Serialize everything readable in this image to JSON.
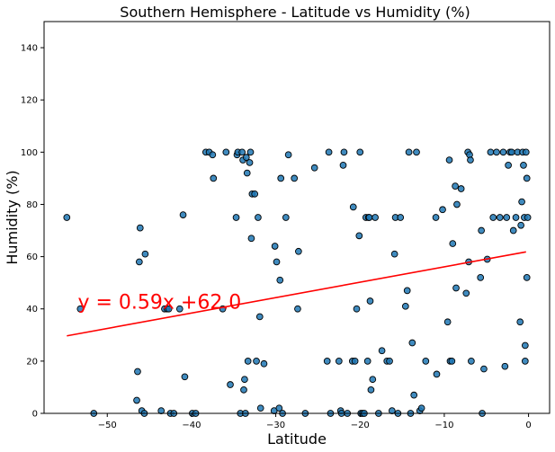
{
  "chart_data": {
    "type": "scatter",
    "title": "Southern Hemisphere - Latitude vs Humidity (%)",
    "xlabel": "Latitude",
    "ylabel": "Humidity (%)",
    "xlim": [
      -57.5,
      2.5
    ],
    "ylim": [
      0,
      150
    ],
    "xticks": [
      -50,
      -40,
      -30,
      -20,
      -10,
      0
    ],
    "yticks": [
      0,
      20,
      40,
      60,
      80,
      100,
      120,
      140
    ],
    "grid": false,
    "marker_color": "#1f77b4",
    "marker_edge": "#000000",
    "regression": {
      "slope": 0.59,
      "intercept": 62.0,
      "x_range": [
        -54.8,
        -0.3
      ],
      "color": "#ff0000",
      "label": "y = 0.59x +62.0",
      "label_x": -53.5,
      "label_y": 40
    },
    "points": [
      [
        -54.8,
        75
      ],
      [
        -53.2,
        40
      ],
      [
        -51.6,
        0
      ],
      [
        -46.5,
        5
      ],
      [
        -46.4,
        16
      ],
      [
        -46.2,
        58
      ],
      [
        -46.1,
        71
      ],
      [
        -45.9,
        1
      ],
      [
        -45.6,
        0
      ],
      [
        -45.5,
        61
      ],
      [
        -43.6,
        1
      ],
      [
        -43.2,
        40
      ],
      [
        -42.9,
        40
      ],
      [
        -42.7,
        40
      ],
      [
        -42.5,
        0
      ],
      [
        -42.1,
        0
      ],
      [
        -41.4,
        40
      ],
      [
        -41.0,
        76
      ],
      [
        -40.8,
        14
      ],
      [
        -39.9,
        0
      ],
      [
        -39.5,
        0
      ],
      [
        -38.3,
        100
      ],
      [
        -37.9,
        100
      ],
      [
        -37.5,
        99
      ],
      [
        -37.4,
        90
      ],
      [
        -36.3,
        40
      ],
      [
        -35.9,
        100
      ],
      [
        -35.4,
        11
      ],
      [
        -34.7,
        75
      ],
      [
        -34.6,
        99
      ],
      [
        -34.5,
        100
      ],
      [
        -34.2,
        0
      ],
      [
        -34.0,
        100
      ],
      [
        -33.9,
        97
      ],
      [
        -33.8,
        9
      ],
      [
        -33.7,
        13
      ],
      [
        -33.6,
        0
      ],
      [
        -33.5,
        98
      ],
      [
        -33.4,
        92
      ],
      [
        -33.3,
        20
      ],
      [
        -33.1,
        96
      ],
      [
        -33.0,
        100
      ],
      [
        -32.9,
        67
      ],
      [
        -32.8,
        84
      ],
      [
        -32.5,
        84
      ],
      [
        -32.3,
        20
      ],
      [
        -32.1,
        75
      ],
      [
        -31.9,
        37
      ],
      [
        -31.8,
        2
      ],
      [
        -31.4,
        19
      ],
      [
        -30.2,
        1
      ],
      [
        -30.1,
        64
      ],
      [
        -29.9,
        58
      ],
      [
        -29.6,
        2
      ],
      [
        -29.5,
        51
      ],
      [
        -29.4,
        90
      ],
      [
        -29.2,
        0
      ],
      [
        -28.8,
        75
      ],
      [
        -28.5,
        99
      ],
      [
        -27.8,
        90
      ],
      [
        -27.4,
        40
      ],
      [
        -27.3,
        62
      ],
      [
        -26.5,
        0
      ],
      [
        -25.4,
        94
      ],
      [
        -23.9,
        20
      ],
      [
        -23.7,
        100
      ],
      [
        -23.5,
        0
      ],
      [
        -22.5,
        20
      ],
      [
        -22.3,
        1
      ],
      [
        -22.2,
        0
      ],
      [
        -22.0,
        95
      ],
      [
        -21.9,
        100
      ],
      [
        -21.5,
        0
      ],
      [
        -20.9,
        20
      ],
      [
        -20.8,
        79
      ],
      [
        -20.6,
        20
      ],
      [
        -20.4,
        40
      ],
      [
        -20.1,
        68
      ],
      [
        -20.0,
        100
      ],
      [
        -19.9,
        0
      ],
      [
        -19.7,
        0
      ],
      [
        -19.5,
        0
      ],
      [
        -19.3,
        75
      ],
      [
        -19.1,
        20
      ],
      [
        -19.0,
        75
      ],
      [
        -18.9,
        75
      ],
      [
        -18.8,
        43
      ],
      [
        -18.7,
        9
      ],
      [
        -18.5,
        13
      ],
      [
        -18.2,
        75
      ],
      [
        -17.8,
        0
      ],
      [
        -17.4,
        24
      ],
      [
        -16.8,
        20
      ],
      [
        -16.5,
        20
      ],
      [
        -16.2,
        1
      ],
      [
        -15.9,
        61
      ],
      [
        -15.8,
        75
      ],
      [
        -15.5,
        0
      ],
      [
        -15.2,
        75
      ],
      [
        -14.6,
        41
      ],
      [
        -14.4,
        47
      ],
      [
        -14.2,
        100
      ],
      [
        -14.0,
        0
      ],
      [
        -13.8,
        27
      ],
      [
        -13.6,
        7
      ],
      [
        -13.3,
        100
      ],
      [
        -12.9,
        1
      ],
      [
        -12.7,
        2
      ],
      [
        -12.2,
        20
      ],
      [
        -11.0,
        75
      ],
      [
        -10.9,
        15
      ],
      [
        -10.2,
        78
      ],
      [
        -9.6,
        35
      ],
      [
        -9.4,
        97
      ],
      [
        -9.3,
        20
      ],
      [
        -9.1,
        20
      ],
      [
        -9.0,
        65
      ],
      [
        -8.7,
        87
      ],
      [
        -8.6,
        48
      ],
      [
        -8.5,
        80
      ],
      [
        -8.0,
        86
      ],
      [
        -7.4,
        46
      ],
      [
        -7.2,
        100
      ],
      [
        -7.1,
        58
      ],
      [
        -7.0,
        99
      ],
      [
        -6.9,
        97
      ],
      [
        -6.8,
        20
      ],
      [
        -5.7,
        52
      ],
      [
        -5.6,
        70
      ],
      [
        -5.5,
        0
      ],
      [
        -5.3,
        17
      ],
      [
        -4.9,
        59
      ],
      [
        -4.5,
        100
      ],
      [
        -4.2,
        75
      ],
      [
        -3.8,
        100
      ],
      [
        -3.4,
        75
      ],
      [
        -3.0,
        100
      ],
      [
        -2.8,
        18
      ],
      [
        -2.6,
        75
      ],
      [
        -2.4,
        95
      ],
      [
        -2.2,
        100
      ],
      [
        -2.0,
        100
      ],
      [
        -1.8,
        70
      ],
      [
        -1.5,
        75
      ],
      [
        -1.3,
        100
      ],
      [
        -1.0,
        35
      ],
      [
        -0.9,
        72
      ],
      [
        -0.8,
        81
      ],
      [
        -0.7,
        100
      ],
      [
        -0.6,
        95
      ],
      [
        -0.5,
        75
      ],
      [
        -0.4,
        20
      ],
      [
        -0.4,
        26
      ],
      [
        -0.3,
        100
      ],
      [
        -0.2,
        90
      ],
      [
        -0.2,
        52
      ],
      [
        -0.1,
        75
      ]
    ]
  }
}
